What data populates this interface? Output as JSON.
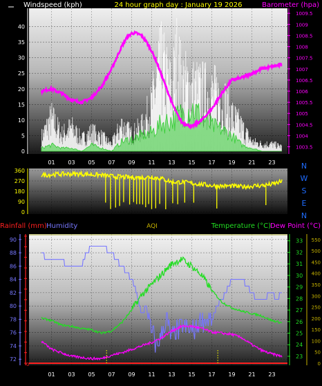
{
  "colors": {
    "wind_axis": "#ffffff",
    "title": "#ffff00",
    "barometer": "#ff00ff",
    "wind_gust": "#ffffff",
    "wind_avg": "#33cc33",
    "wind_dir": "#ffff00",
    "compass": "#1e6cff",
    "rainfall": "#ff2020",
    "humidity": "#7777ff",
    "aqi": "#c8b400",
    "temperature": "#22dd22",
    "dew_point": "#ff00ff",
    "bottom_axis": "#ffffff"
  },
  "chart_data": [
    {
      "type": "line",
      "title": "24 hour graph day : January 19 2026",
      "ylabel_left": "Windspeed (kph)",
      "ylabel_right": "Barometer (hpa)",
      "x_ticks": [
        "01",
        "03",
        "05",
        "07",
        "09",
        "11",
        "13",
        "15",
        "17",
        "19",
        "21",
        "23"
      ],
      "ylim_left": [
        0,
        45
      ],
      "yticks_left": [
        "0",
        "5",
        "10",
        "15",
        "20",
        "25",
        "30",
        "35",
        "40"
      ],
      "ylim_right": [
        1003.3,
        1009.6
      ],
      "yticks_right": [
        "1003.5",
        "1004",
        "1004.5",
        "1005",
        "1005.5",
        "1006",
        "1006.5",
        "1007",
        "1007.5",
        "1008",
        "1008.5",
        "1009",
        "1009.5"
      ],
      "series": [
        {
          "name": "Barometer (hpa)",
          "axis": "right",
          "x": [
            0,
            1,
            2,
            3,
            4,
            5,
            6,
            7,
            7.5,
            8,
            8.5,
            9,
            9.5,
            10,
            10.5,
            11,
            11.5,
            12,
            12.5,
            13,
            13.5,
            14,
            15,
            16,
            17,
            18,
            19,
            20,
            21,
            22,
            23,
            24
          ],
          "values": [
            1006.0,
            1006.1,
            1005.9,
            1005.6,
            1005.5,
            1005.7,
            1006.2,
            1007.0,
            1007.5,
            1008.0,
            1008.4,
            1008.6,
            1008.6,
            1008.5,
            1008.2,
            1007.8,
            1007.3,
            1006.7,
            1006.1,
            1005.5,
            1005.0,
            1004.6,
            1004.4,
            1004.7,
            1005.2,
            1005.9,
            1006.5,
            1006.6,
            1006.8,
            1007.0,
            1007.1,
            1007.2
          ]
        },
        {
          "name": "Wind gust",
          "axis": "left",
          "x": [
            0,
            1,
            2,
            3,
            4,
            5,
            6,
            7,
            8,
            9,
            10,
            11,
            11.5,
            12,
            12.5,
            13,
            13.5,
            14,
            15,
            16,
            17,
            18,
            19,
            20,
            21,
            22,
            23,
            24
          ],
          "values": [
            6,
            14,
            7,
            10,
            5,
            8,
            6,
            3,
            11,
            7,
            10,
            19,
            30,
            36,
            30,
            25,
            38,
            29,
            26,
            25,
            24,
            23,
            15,
            10,
            4,
            3,
            3,
            2
          ]
        },
        {
          "name": "Wind average",
          "axis": "left",
          "x": [
            0,
            1,
            2,
            3,
            4,
            5,
            6,
            7,
            8,
            9,
            10,
            11,
            12,
            13,
            14,
            15,
            16,
            17,
            18,
            19,
            20,
            21,
            22,
            23,
            24
          ],
          "values": [
            1,
            2,
            1,
            1,
            0,
            2,
            1,
            0,
            3,
            4,
            5,
            6,
            9,
            10,
            12,
            14,
            11,
            8,
            7,
            5,
            2,
            1,
            0,
            0,
            0
          ]
        }
      ]
    },
    {
      "type": "line",
      "ylim_left": [
        0,
        360
      ],
      "yticks_left": [
        "0",
        "90",
        "180",
        "270",
        "360"
      ],
      "compass_labels": [
        "N",
        "W",
        "S",
        "E",
        "N"
      ],
      "x": [
        0,
        2,
        4,
        6,
        7,
        8,
        9,
        10,
        11,
        12,
        13,
        14,
        15,
        16,
        17,
        18,
        19,
        20,
        21,
        22,
        23,
        24
      ],
      "values": [
        320,
        330,
        330,
        320,
        310,
        305,
        300,
        300,
        305,
        290,
        260,
        260,
        250,
        240,
        230,
        225,
        225,
        220,
        225,
        230,
        240,
        265
      ]
    },
    {
      "type": "line",
      "labels": {
        "rainfall": "Rainfall (mm)",
        "humidity": "Humidity",
        "aqi": "AQI",
        "temperature": "Temperature (°C)",
        "dew_point": "Dew Point (°C)"
      },
      "x_ticks": [
        "01",
        "03",
        "05",
        "07",
        "09",
        "11",
        "13",
        "15",
        "17",
        "19",
        "21",
        "23"
      ],
      "yticks_humidity": [
        "72",
        "74",
        "76",
        "78",
        "80",
        "82",
        "84",
        "86",
        "88",
        "90"
      ],
      "ylim_humidity": [
        71.4,
        90.5
      ],
      "yticks_temp": [
        "23",
        "24",
        "25",
        "26",
        "27",
        "28",
        "29",
        "30",
        "31",
        "32",
        "33"
      ],
      "ylim_temp": [
        22.4,
        33.4
      ],
      "yticks_aqi": [
        "0",
        "50",
        "100",
        "150",
        "200",
        "250",
        "300",
        "350",
        "400",
        "450",
        "500",
        "550"
      ],
      "ylim_aqi": [
        0,
        565
      ],
      "yticks_rain": [
        "0"
      ],
      "series": [
        {
          "name": "Humidity",
          "x": [
            0,
            0.5,
            2,
            2.5,
            4,
            4.5,
            5,
            6,
            7,
            8,
            9,
            9.5,
            10,
            10.5,
            11,
            11.5,
            12,
            12.5,
            13,
            14,
            15,
            16,
            17,
            17.5,
            18,
            19,
            20,
            21,
            21.5,
            22,
            23,
            23.5,
            24
          ],
          "values": [
            88,
            87,
            87,
            86,
            86,
            88,
            89,
            89,
            88,
            86,
            84,
            82,
            79,
            80,
            76,
            74,
            76,
            78,
            75,
            77,
            76,
            78,
            78,
            80,
            81,
            84,
            84,
            82,
            81,
            81,
            82,
            81,
            82
          ]
        },
        {
          "name": "Temperature (°C)",
          "x": [
            0,
            1,
            2,
            3,
            4,
            5,
            6,
            7,
            8,
            9,
            10,
            11,
            12,
            13,
            14,
            15,
            16,
            17,
            18,
            19,
            20,
            21,
            22,
            23,
            24
          ],
          "values": [
            26.3,
            26.1,
            25.7,
            25.6,
            25.4,
            25.3,
            25.0,
            25.2,
            25.9,
            27.0,
            28.3,
            29.2,
            30.1,
            31.0,
            31.4,
            30.8,
            30.0,
            28.7,
            27.7,
            27.2,
            26.9,
            26.7,
            26.5,
            26.1,
            25.9
          ]
        },
        {
          "name": "Dew Point (°C)",
          "x": [
            0,
            1,
            2,
            3,
            4,
            5,
            6,
            7,
            8,
            9,
            10,
            11,
            12,
            13,
            14,
            15,
            16,
            17,
            18,
            19,
            20,
            21,
            22,
            23,
            24
          ],
          "values": [
            24.3,
            23.6,
            23.3,
            23.0,
            22.9,
            22.8,
            22.8,
            23.1,
            23.3,
            23.6,
            23.9,
            24.2,
            24.6,
            25.2,
            25.6,
            25.6,
            25.4,
            25.1,
            25.0,
            24.9,
            24.6,
            24.0,
            23.5,
            23.2,
            23.0
          ]
        },
        {
          "name": "Rainfall (mm)",
          "x": [
            0,
            24
          ],
          "values": [
            0,
            0
          ]
        }
      ]
    }
  ]
}
